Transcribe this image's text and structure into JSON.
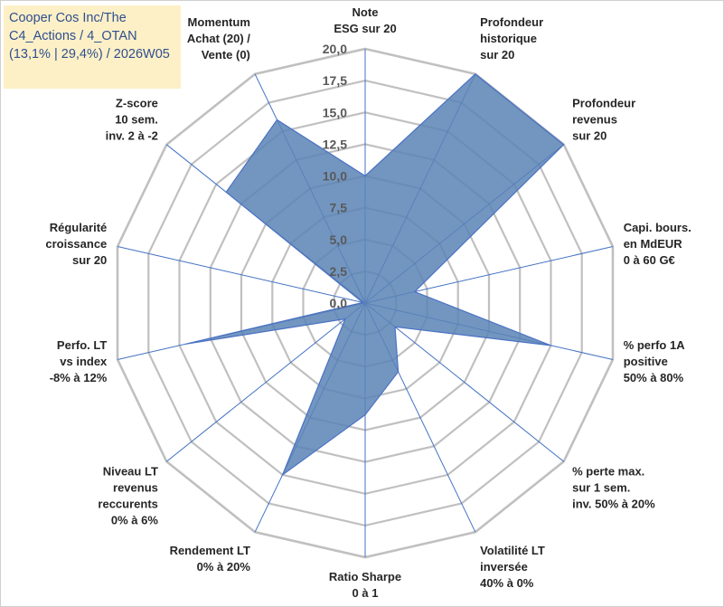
{
  "title_lines": [
    "Cooper Cos Inc/The",
    "C4_Actions / 4_OTAN",
    "(13,1% | 29,4%) / 2026W05"
  ],
  "chart_data": {
    "type": "radar",
    "rmax": 20,
    "ticks": [
      "0,0",
      "2,5",
      "5,0",
      "7,5",
      "10,0",
      "12,5",
      "15,0",
      "17,5",
      "20,0"
    ],
    "axes": [
      {
        "label": [
          "Note",
          "ESG sur 20"
        ],
        "value": 10.0
      },
      {
        "label": [
          "Profondeur",
          "historique",
          "sur 20"
        ],
        "value": 20.0
      },
      {
        "label": [
          "Profondeur",
          "revenus",
          "sur 20"
        ],
        "value": 20.0
      },
      {
        "label": [
          "Capi. bours.",
          "en MdEUR",
          "0 à 60 G€"
        ],
        "value": 4.0
      },
      {
        "label": [
          "% perfo 1A",
          "positive",
          "50% à 80%"
        ],
        "value": 15.0
      },
      {
        "label": [
          "% perte max.",
          "sur 1 sem.",
          "inv. 50% à 20%"
        ],
        "value": 3.0
      },
      {
        "label": [
          "Volatilité LT",
          "inversée",
          "40% à 0%"
        ],
        "value": 6.0
      },
      {
        "label": [
          "Ratio Sharpe",
          "0 à 1"
        ],
        "value": 8.8
      },
      {
        "label": [
          "Rendement LT",
          "0% à 20%"
        ],
        "value": 15.0
      },
      {
        "label": [
          "Niveau LT",
          "revenus",
          "reccurents",
          "0% à 6%"
        ],
        "value": 2.0
      },
      {
        "label": [
          "Perfo. LT",
          "vs index",
          "-8% à 12%"
        ],
        "value": 14.5
      },
      {
        "label": [
          "Régularité",
          "croissance",
          "sur 20"
        ],
        "value": 0.2
      },
      {
        "label": [
          "Z-score",
          "10 sem.",
          "inv. 2 à -2"
        ],
        "value": 14.0
      },
      {
        "label": [
          "Momentum",
          "Achat (20) /",
          "Vente (0)"
        ],
        "value": 16.0
      }
    ],
    "colors": {
      "fill": "#5b84b6",
      "stroke": "#4a72c4",
      "grid": "#c0c0c0",
      "spoke": "#4472c4"
    },
    "grid": true
  }
}
